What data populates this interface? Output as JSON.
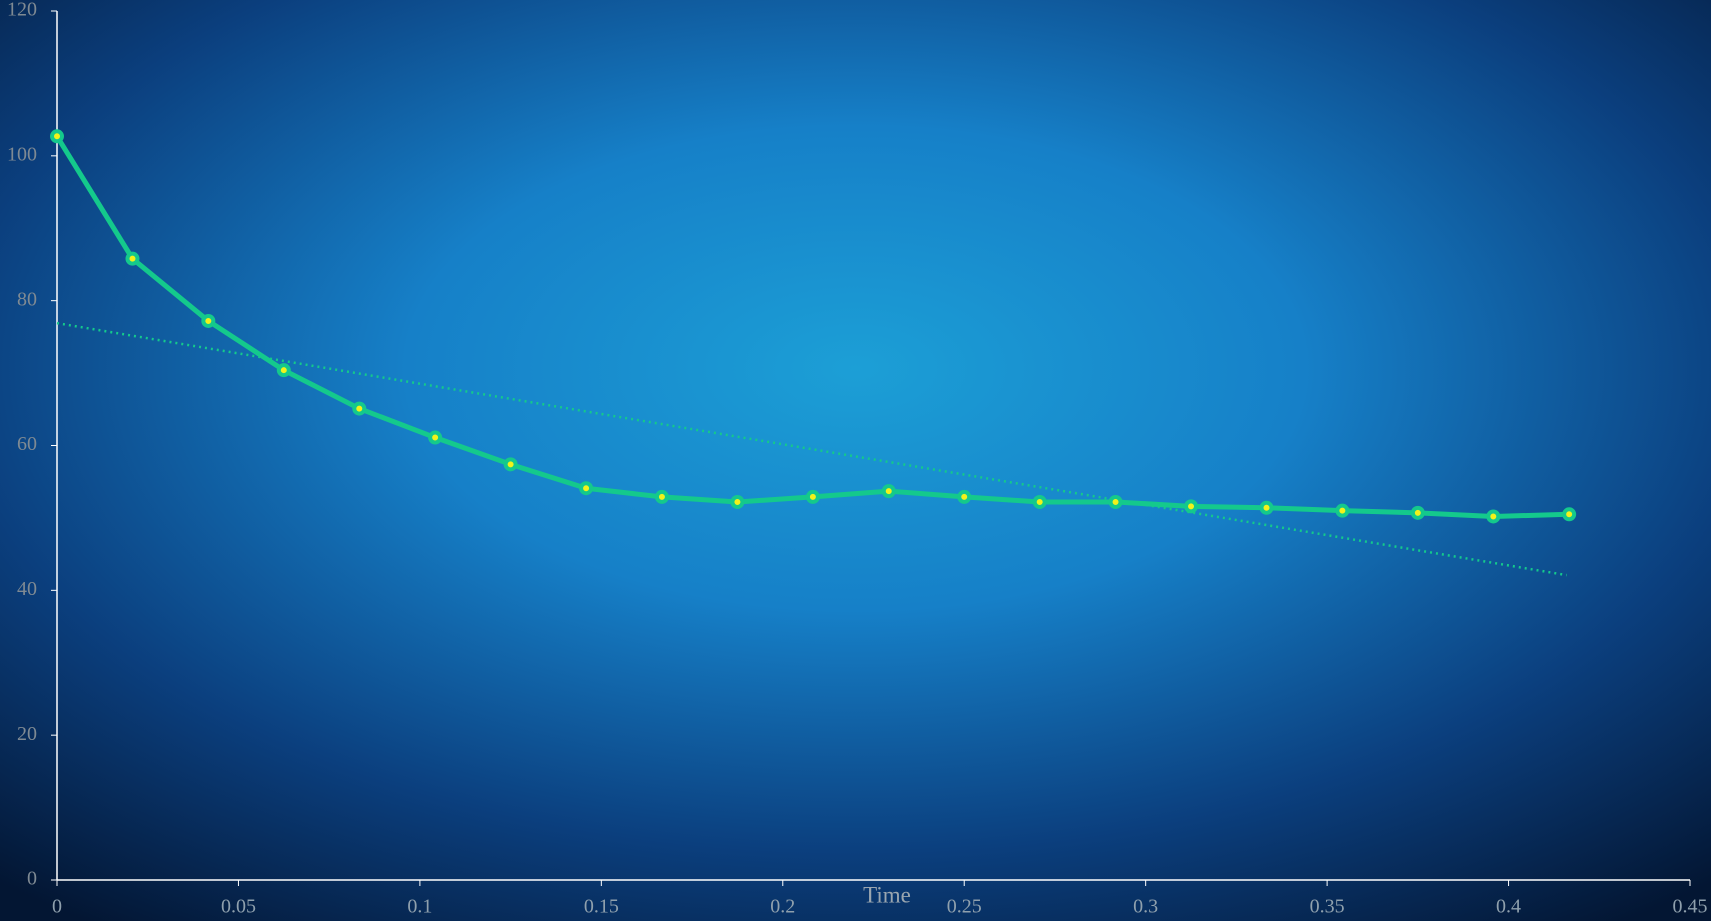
{
  "chart_data": {
    "type": "line",
    "x_label": "Time",
    "x": [
      0,
      0.0208,
      0.0417,
      0.0625,
      0.0833,
      0.1042,
      0.125,
      0.1458,
      0.1667,
      0.1875,
      0.2083,
      0.2292,
      0.25,
      0.2708,
      0.2917,
      0.3125,
      0.3333,
      0.3542,
      0.375,
      0.3958,
      0.4167
    ],
    "values": [
      102.7,
      85.8,
      77.2,
      70.4,
      65.1,
      61.1,
      57.4,
      54.1,
      52.9,
      52.2,
      52.9,
      53.7,
      52.9,
      52.2,
      52.2,
      51.6,
      51.4,
      51.0,
      50.7,
      50.2,
      50.5
    ],
    "color": "#14c98c",
    "marker_color": "#f2f21a",
    "trendline": {
      "x": [
        0,
        0.416
      ],
      "values": [
        76.9,
        42.1
      ],
      "color": "#14c98c"
    },
    "xlim": [
      0,
      0.45
    ],
    "xticks": [
      0,
      0.05,
      0.1,
      0.15,
      0.2,
      0.25,
      0.3,
      0.35,
      0.4,
      0.45
    ],
    "ylim": [
      0,
      120
    ],
    "yticks": [
      0,
      20,
      40,
      60,
      80,
      100,
      120
    ],
    "grid": false
  }
}
